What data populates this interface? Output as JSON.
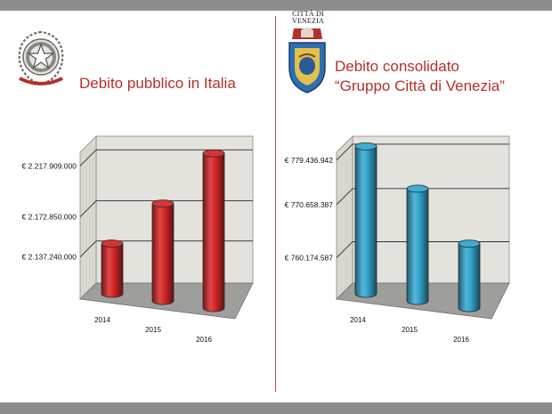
{
  "left": {
    "title": "Debito pubblico in Italia",
    "emblem": "repubblica-italiana-emblem"
  },
  "right": {
    "brand_label_line1": "CITTÀ DI",
    "brand_label_line2": "VENEZIA",
    "title_line1": "Debito consolidato",
    "title_line2": "“Gruppo Città di Venezia”",
    "emblem": "citta-di-venezia-coat-of-arms"
  },
  "colors": {
    "accent": "#b5302a",
    "divider": "#a8505a",
    "bar_red": "#d8282a",
    "bar_blue": "#35a8d0",
    "wall": "#e4e2dc",
    "floor": "#9e9e9c"
  },
  "chart_data": [
    {
      "type": "bar",
      "style": "3d-cylinder",
      "categories": [
        "2014",
        "2015",
        "2016"
      ],
      "values": [
        2135000000,
        2172000000,
        2218000000
      ],
      "yticks": [
        2137240000,
        2172850000,
        2217909000
      ],
      "ytick_labels": [
        "€ 2.137.240.000",
        "€ 2.172.850.000",
        "€ 2.217.909.000"
      ],
      "ylim": [
        2100000000,
        2230000000
      ],
      "grid": true,
      "bar_color": "#d8282a"
    },
    {
      "type": "bar",
      "style": "3d-cylinder",
      "categories": [
        "2014",
        "2015",
        "2016"
      ],
      "values": [
        779000000,
        771000000,
        760500000
      ],
      "yticks": [
        760174587,
        770658387,
        779436942
      ],
      "ytick_labels": [
        "€ 760.174.587",
        "€ 770.658.387",
        "€ 779.436.942"
      ],
      "ylim": [
        752000000,
        781000000
      ],
      "grid": true,
      "bar_color": "#35a8d0"
    }
  ]
}
